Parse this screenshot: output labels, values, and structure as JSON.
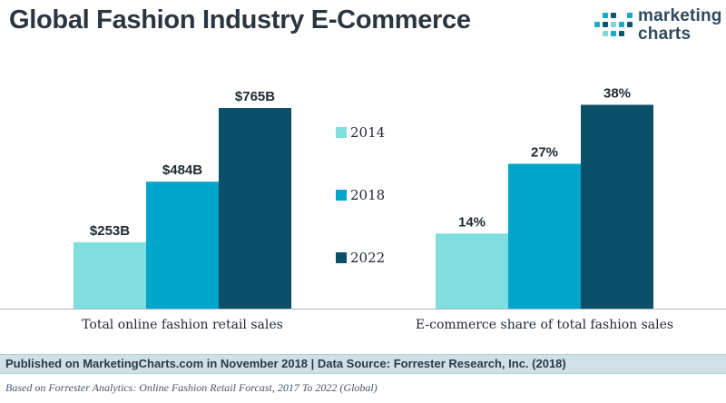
{
  "header": {
    "title": "Global Fashion Industry E-Commerce"
  },
  "logo": {
    "line1": "marketing",
    "line2": "charts",
    "colors": [
      "#7dd8d8",
      "#1fa9c9",
      "#0e5670"
    ]
  },
  "chart_data": [
    {
      "type": "bar",
      "xlabel": "Total online fashion retail sales",
      "series": [
        {
          "name": "2014",
          "values": [
            253
          ],
          "labels": [
            "$253B"
          ]
        },
        {
          "name": "2018",
          "values": [
            484
          ],
          "labels": [
            "$484B"
          ]
        },
        {
          "name": "2022",
          "values": [
            765
          ],
          "labels": [
            "$765B"
          ]
        }
      ],
      "unit": "$B",
      "ylim": [
        0,
        900
      ],
      "grid": false
    },
    {
      "type": "bar",
      "xlabel": "E-commerce share of total fashion sales",
      "series": [
        {
          "name": "2014",
          "values": [
            14
          ],
          "labels": [
            "14%"
          ]
        },
        {
          "name": "2018",
          "values": [
            27
          ],
          "labels": [
            "27%"
          ]
        },
        {
          "name": "2022",
          "values": [
            38
          ],
          "labels": [
            "38%"
          ]
        }
      ],
      "unit": "%",
      "ylim": [
        0,
        44
      ],
      "grid": false
    }
  ],
  "legend": {
    "placement": "center",
    "items": [
      {
        "label": "2014",
        "color": "#7fdfdf"
      },
      {
        "label": "2018",
        "color": "#00a5cc"
      },
      {
        "label": "2022",
        "color": "#0b4f68"
      }
    ]
  },
  "footer": {
    "published": "Published on MarketingCharts.com in November 2018 | Data Source: Forrester Research, Inc. (2018)",
    "note": "Based on Forrester Analytics: Online Fashion Retail Forcast, 2017 To 2022 (Global)"
  }
}
